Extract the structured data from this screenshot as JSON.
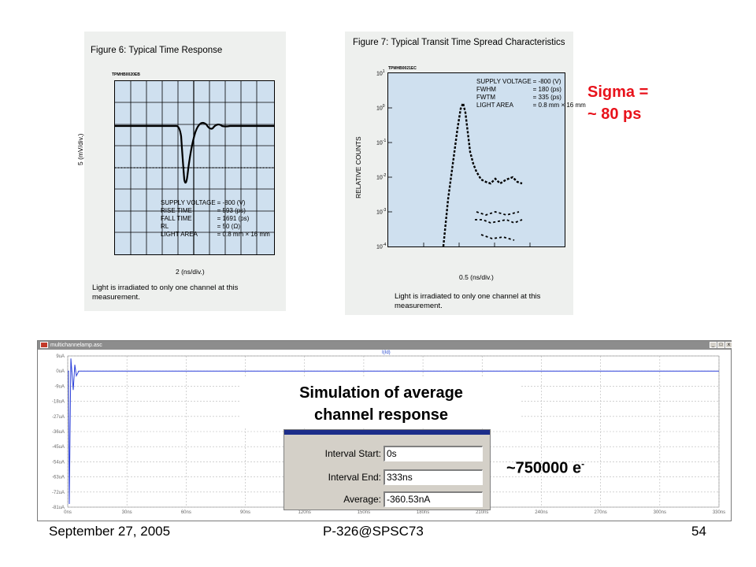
{
  "figure6": {
    "title": "Figure 6: Typical Time Response",
    "tag": "TPMHB0020EB",
    "ylabel": "5 (mV/div.)",
    "xlabel": "2 (ns/div.)",
    "specs": [
      {
        "k": "SUPPLY VOLTAGE",
        "v": "= -800 (V)"
      },
      {
        "k": "RISE TIME",
        "v": "= 593 (ps)"
      },
      {
        "k": "FALL TIME",
        "v": "= 1691 (ps)"
      },
      {
        "k": "RL",
        "v": "= 50 (Ω)"
      },
      {
        "k": "LIGHT AREA",
        "v": "= 0.8 mm × 16 mm"
      }
    ],
    "note": "Light is irradiated to only one channel at this measurement."
  },
  "figure7": {
    "title": "Figure 7: Typical Transit Time Spread Characteristics",
    "tag": "TPMHB0021EC",
    "ylabel": "RELATIVE COUNTS",
    "xlabel": "0.5 (ns/div.)",
    "yticks": [
      {
        "base": "10",
        "exp": "1"
      },
      {
        "base": "10",
        "exp": "0"
      },
      {
        "base": "10",
        "exp": "-1"
      },
      {
        "base": "10",
        "exp": "-2"
      },
      {
        "base": "10",
        "exp": "-3"
      },
      {
        "base": "10",
        "exp": "-4"
      }
    ],
    "specs": [
      {
        "k": "SUPPLY VOLTAGE",
        "v": "= -800 (V)"
      },
      {
        "k": "FWHM",
        "v": "= 180 (ps)"
      },
      {
        "k": "FWTM",
        "v": "= 335 (ps)"
      },
      {
        "k": "LIGHT AREA",
        "v": "= 0.8 mm × 16 mm"
      }
    ],
    "note": "Light is irradiated to only one channel at this measurement."
  },
  "annotation": {
    "sigma_line1": "Sigma =",
    "sigma_line2": "~ 80 ps"
  },
  "sim_window": {
    "title": "multichannelamp.asc",
    "trace_label": "I(Id)",
    "y_ticks": [
      "9uA",
      "0uA",
      "-9uA",
      "-18uA",
      "-27uA",
      "-36uA",
      "-45uA",
      "-54uA",
      "-63uA",
      "-72uA",
      "-81uA"
    ],
    "x_ticks": [
      "0ns",
      "30ns",
      "60ns",
      "90ns",
      "120ns",
      "150ns",
      "180ns",
      "210ns",
      "240ns",
      "270ns",
      "300ns",
      "330ns"
    ],
    "buttons": [
      "_",
      "□",
      "x"
    ],
    "colors": {
      "trace": "#2b3fd9",
      "grid": "#b8b8b8",
      "axis_text": "#6a6a6a"
    }
  },
  "sim_title_line1": "Simulation of average",
  "sim_title_line2": "channel response",
  "dialog": {
    "rows": [
      {
        "label": "Interval Start:",
        "value": "0s"
      },
      {
        "label": "Interval End:",
        "value": "333ns"
      },
      {
        "label": "Average:",
        "value": "-360.53nA"
      }
    ]
  },
  "electrons": {
    "value": "~750000 e",
    "sup": "-"
  },
  "footer": {
    "date": "September 27, 2005",
    "id": "P-326@SPSC73",
    "page": "54"
  }
}
